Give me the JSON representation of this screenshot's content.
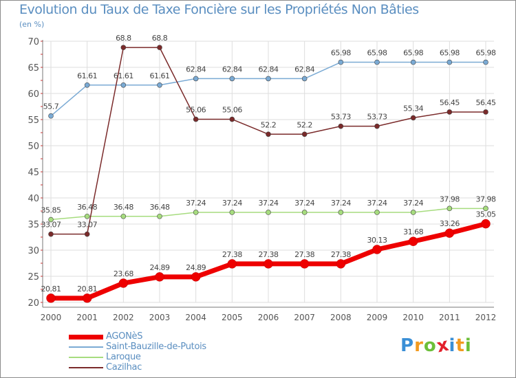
{
  "header": {
    "title": "Evolution du Taux de Taxe Foncière sur les Propriétés Non Bâties",
    "unit": "(en %)"
  },
  "brand": {
    "letters": [
      "P",
      "r",
      "o",
      "x",
      "i",
      "t",
      "i"
    ],
    "colors": [
      "#3a8fd6",
      "#f29a1f",
      "#6cbf3a",
      "#e2202b",
      "#3a8fd6",
      "#f29a1f",
      "#6cbf3a"
    ]
  },
  "chart_data": {
    "type": "line",
    "title": "Evolution du Taux de Taxe Foncière sur les Propriétés Non Bâties",
    "ylabel": "(en %)",
    "xlabel": "",
    "x": [
      "2000",
      "2001",
      "2002",
      "2003",
      "2004",
      "2005",
      "2006",
      "2007",
      "2008",
      "2009",
      "2010",
      "2011",
      "2012"
    ],
    "ylim": [
      20,
      70
    ],
    "yticks": [
      20,
      25,
      30,
      35,
      40,
      45,
      50,
      55,
      60,
      65,
      70
    ],
    "grid": true,
    "legend_position": "bottom-left",
    "series": [
      {
        "name": "AGONèS",
        "color": "#ee0000",
        "values": [
          20.81,
          20.81,
          23.68,
          24.89,
          24.89,
          27.38,
          27.38,
          27.38,
          27.38,
          30.13,
          31.68,
          33.26,
          35.05
        ],
        "labels": [
          "20.81",
          "20.81",
          "23.68",
          "24.89",
          "24.89",
          "27.38",
          "27.38",
          "27.38",
          "27.38",
          "30.13",
          "31.68",
          "33.26",
          "35.05"
        ]
      },
      {
        "name": "Saint-Bauzille-de-Putois",
        "color": "#7aaad4",
        "values": [
          55.7,
          61.61,
          61.61,
          61.61,
          62.84,
          62.84,
          62.84,
          62.84,
          65.98,
          65.98,
          65.98,
          65.98,
          65.98
        ],
        "labels": [
          "55.7",
          "61.61",
          "61.61",
          "61.61",
          "62.84",
          "62.84",
          "62.84",
          "62.84",
          "65.98",
          "65.98",
          "65.98",
          "65.98",
          "65.98"
        ]
      },
      {
        "name": "Laroque",
        "color": "#a6dc7e",
        "values": [
          35.85,
          36.48,
          36.48,
          36.48,
          37.24,
          37.24,
          37.24,
          37.24,
          37.24,
          37.24,
          37.24,
          37.98,
          37.98
        ],
        "labels": [
          "35.85",
          "36.48",
          "36.48",
          "36.48",
          "37.24",
          "37.24",
          "37.24",
          "37.24",
          "37.24",
          "37.24",
          "37.24",
          "37.98",
          "37.98"
        ]
      },
      {
        "name": "Cazilhac",
        "color": "#7a2a2a",
        "values": [
          33.07,
          33.07,
          68.8,
          68.8,
          55.06,
          55.06,
          52.2,
          52.2,
          53.73,
          53.73,
          55.34,
          56.45,
          56.45
        ],
        "labels": [
          "33.07",
          "33.07",
          "68.8",
          "68.8",
          "55.06",
          "55.06",
          "52.2",
          "52.2",
          "53.73",
          "53.73",
          "55.34",
          "56.45",
          "56.45"
        ]
      }
    ]
  }
}
